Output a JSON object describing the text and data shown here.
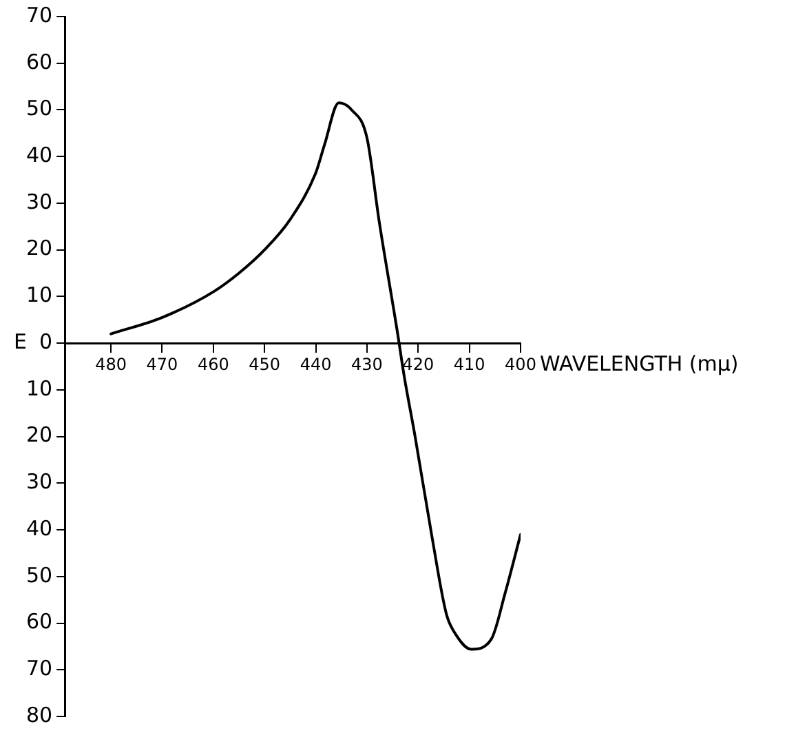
{
  "chart_data": {
    "type": "line",
    "xlabel": "WAVELENGTH (mμ)",
    "ylabel": "E",
    "x": [
      480,
      470,
      460,
      455,
      450,
      445,
      440,
      438.3,
      435.5,
      433,
      430,
      427.6,
      424,
      422.8,
      420.6,
      417.3,
      414.5,
      412.9,
      409.6,
      405.7,
      403,
      400
    ],
    "series": [
      {
        "color": "#000000",
        "values": [
          2,
          5.5,
          11,
          15,
          20,
          26.5,
          36.5,
          42.5,
          51.5,
          50,
          44,
          26,
          2,
          -6.6,
          -20,
          -41.5,
          -58,
          -62,
          -65.6,
          -63.4,
          -53.5,
          -41
        ]
      }
    ],
    "xlim": [
      489,
      400
    ],
    "ylim": [
      -80,
      70
    ],
    "xticks": [
      480,
      470,
      460,
      450,
      440,
      430,
      420,
      410,
      400
    ],
    "yticks": [
      70,
      60,
      50,
      40,
      30,
      20,
      10,
      0,
      {
        "value": -10,
        "label": "10"
      },
      {
        "value": -20,
        "label": "20"
      },
      {
        "value": -30,
        "label": "30"
      },
      {
        "value": -40,
        "label": "40"
      },
      {
        "value": -50,
        "label": "50"
      },
      {
        "value": -60,
        "label": "60"
      },
      {
        "value": -70,
        "label": "70"
      },
      {
        "value": -80,
        "label": "80"
      }
    ],
    "grid": false,
    "legend": false,
    "marker": "none",
    "line_style": "solid"
  }
}
